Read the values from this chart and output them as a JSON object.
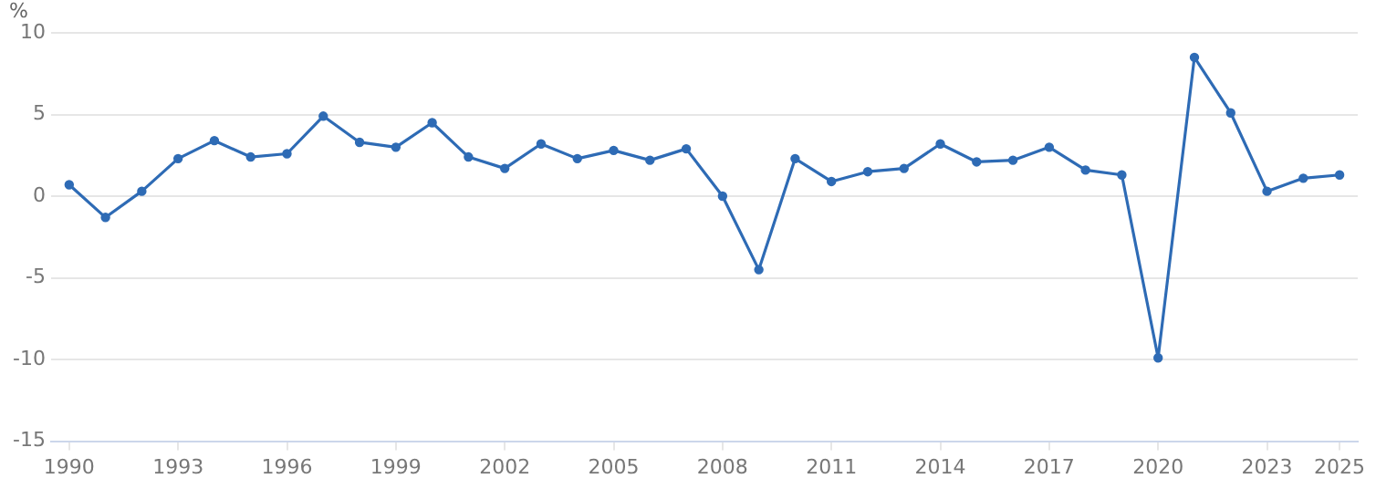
{
  "chart_data": {
    "type": "line",
    "ylabel": "%",
    "x": [
      1990,
      1991,
      1992,
      1993,
      1994,
      1995,
      1996,
      1997,
      1998,
      1999,
      2000,
      2001,
      2002,
      2003,
      2004,
      2005,
      2006,
      2007,
      2008,
      2009,
      2010,
      2011,
      2012,
      2013,
      2014,
      2015,
      2016,
      2017,
      2018,
      2019,
      2020,
      2021,
      2022,
      2023,
      2024,
      2025
    ],
    "series": [
      {
        "color": "#2e6bb5",
        "values": [
          0.7,
          -1.3,
          0.3,
          2.3,
          3.4,
          2.4,
          2.6,
          4.9,
          3.3,
          3.0,
          4.5,
          2.4,
          1.7,
          3.2,
          2.3,
          2.8,
          2.2,
          2.9,
          0.0,
          -4.5,
          2.3,
          0.9,
          1.5,
          1.7,
          3.2,
          2.1,
          2.2,
          3.0,
          1.6,
          1.3,
          -9.9,
          8.5,
          5.1,
          0.3,
          1.1,
          1.3
        ]
      }
    ],
    "xlim": [
      1989.5,
      2025.5
    ],
    "xticks": [
      1990,
      1993,
      1996,
      1999,
      2002,
      2005,
      2008,
      2011,
      2014,
      2017,
      2020,
      2023,
      2025
    ],
    "ylim": [
      -15,
      10
    ],
    "yticks": [
      -15,
      -10,
      -5,
      0,
      5,
      10
    ],
    "grid": "y",
    "legend": false,
    "marker": "circle",
    "line_style": "solid"
  }
}
